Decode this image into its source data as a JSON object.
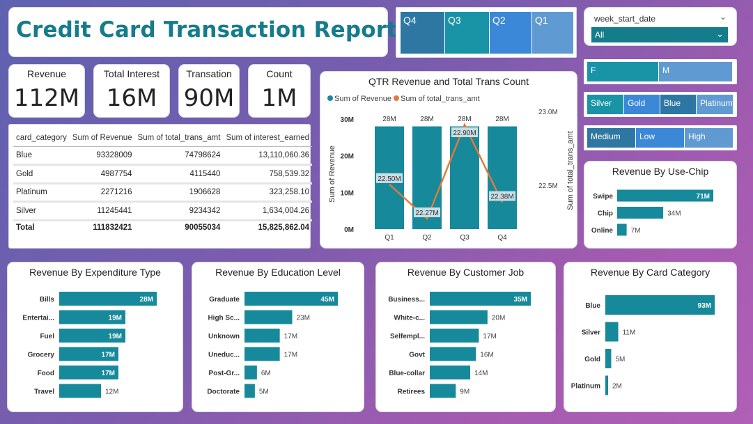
{
  "report": {
    "title": "Credit Card Transaction Report"
  },
  "slicers": {
    "quarter": {
      "items": [
        "Q4",
        "Q3",
        "Q2",
        "Q1"
      ],
      "colors": [
        "#2f77a3",
        "#1994a6",
        "#3b88d8",
        "#5f9bd2"
      ]
    },
    "week": {
      "label": "week_start_date",
      "value": "All"
    },
    "gender": {
      "items": [
        "F",
        "M"
      ],
      "colors": [
        "#1994a6",
        "#5f9bd2"
      ]
    },
    "card": {
      "items": [
        "Silver",
        "Gold",
        "Blue",
        "Platinum"
      ],
      "colors": [
        "#1994a6",
        "#3b88d8",
        "#2f77a3",
        "#5f9bd2"
      ]
    },
    "income": {
      "items": [
        "Medium",
        "Low",
        "High"
      ],
      "colors": [
        "#2f77a3",
        "#3b88d8",
        "#5f9bd2"
      ]
    }
  },
  "kpis": [
    {
      "label": "Revenue",
      "value": "112M"
    },
    {
      "label": "Total Interest",
      "value": "16M"
    },
    {
      "label": "Transation",
      "value": "90M"
    },
    {
      "label": "Count",
      "value": "1M"
    }
  ],
  "table": {
    "columns": [
      "card_category",
      "Sum of Revenue",
      "Sum of total_trans_amt",
      "Sum of interest_earned"
    ],
    "rows": [
      [
        "Blue",
        "93328009",
        "74798624",
        "13,110,060.36"
      ],
      [
        "Gold",
        "4987754",
        "4115440",
        "758,539.32"
      ],
      [
        "Platinum",
        "2271216",
        "1906628",
        "323,258.10"
      ],
      [
        "Silver",
        "11245441",
        "9234342",
        "1,634,004.26"
      ]
    ],
    "total": [
      "Total",
      "111832421",
      "90055034",
      "15,825,862.04"
    ]
  },
  "colors": {
    "bar": "#16899b",
    "line": "#e07b39",
    "label_bg": "#c9dde5"
  },
  "chart_data": [
    {
      "type": "bar",
      "title": "QTR Revenue and Total Trans Count",
      "legend": [
        "Sum of Revenue",
        "Sum of total_trans_amt"
      ],
      "categories": [
        "Q1",
        "Q2",
        "Q3",
        "Q4"
      ],
      "series": [
        {
          "name": "Sum of Revenue",
          "values": [
            28,
            28,
            28,
            28
          ],
          "labels": [
            "28M",
            "28M",
            "28M",
            "28M"
          ]
        },
        {
          "name": "Sum of total_trans_amt",
          "values": [
            22.5,
            22.27,
            22.9,
            22.38
          ],
          "labels": [
            "22.50M",
            "22.27M",
            "22.90M",
            "22.38M"
          ]
        }
      ],
      "ylabel": "Sum of Revenue",
      "y2label": "Sum of total_trans_amt",
      "yticks": [
        "0M",
        "10M",
        "20M",
        "30M"
      ],
      "y2ticks": [
        "22.5M",
        "23.0M"
      ],
      "ylim": [
        0,
        30
      ],
      "y2lim": [
        22.2,
        23.0
      ]
    },
    {
      "type": "bar",
      "title": "Revenue By Use-Chip",
      "categories": [
        "Swipe",
        "Chip",
        "Online"
      ],
      "values": [
        71,
        34,
        7
      ],
      "labels": [
        "71M",
        "34M",
        "7M"
      ]
    },
    {
      "type": "bar",
      "title": "Revenue By Expenditure Type",
      "categories": [
        "Bills",
        "Entertai...",
        "Fuel",
        "Grocery",
        "Food",
        "Travel"
      ],
      "values": [
        28,
        19,
        19,
        17,
        17,
        12
      ],
      "labels": [
        "28M",
        "19M",
        "19M",
        "17M",
        "17M",
        "12M"
      ]
    },
    {
      "type": "bar",
      "title": "Revenue By Education Level",
      "categories": [
        "Graduate",
        "High Sc...",
        "Unknown",
        "Uneduc...",
        "Post-Gr...",
        "Doctorate"
      ],
      "values": [
        45,
        23,
        17,
        17,
        6,
        5
      ],
      "labels": [
        "45M",
        "23M",
        "17M",
        "17M",
        "6M",
        "5M"
      ]
    },
    {
      "type": "bar",
      "title": "Revenue By Customer Job",
      "categories": [
        "Business...",
        "White-c...",
        "Selfempl...",
        "Govt",
        "Blue-collar",
        "Retirees"
      ],
      "values": [
        35,
        20,
        17,
        16,
        14,
        9
      ],
      "labels": [
        "35M",
        "20M",
        "17M",
        "16M",
        "14M",
        "9M"
      ]
    },
    {
      "type": "bar",
      "title": "Revenue By Card Category",
      "categories": [
        "Blue",
        "Silver",
        "Gold",
        "Platinum"
      ],
      "values": [
        93,
        11,
        5,
        2
      ],
      "labels": [
        "93M",
        "11M",
        "5M",
        "2M"
      ]
    }
  ]
}
